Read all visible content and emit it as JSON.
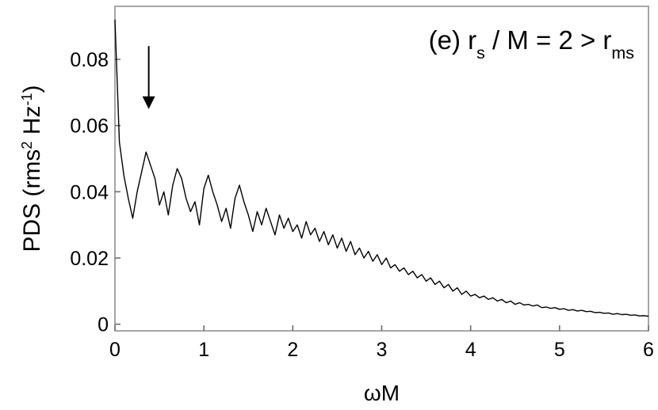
{
  "chart_data": {
    "type": "line",
    "annotation": [
      {
        "text": "(e) r"
      },
      {
        "text": "s",
        "sub": true
      },
      {
        "text": " / M = 2 > r"
      },
      {
        "text": "ms",
        "sub": true
      }
    ],
    "xlabel": [
      {
        "text": "ωM"
      }
    ],
    "ylabel": [
      {
        "text": "PDS (rms"
      },
      {
        "text": "2",
        "sup": true
      },
      {
        "text": " Hz"
      },
      {
        "text": "-1",
        "sup": true
      },
      {
        "text": ")"
      }
    ],
    "color": "#000000",
    "xlim": [
      0,
      6
    ],
    "ylim": [
      -0.002,
      0.096
    ],
    "xticks": [
      0,
      1,
      2,
      3,
      4,
      5,
      6
    ],
    "yticks": [
      0,
      0.02,
      0.04,
      0.06,
      0.08
    ],
    "arrow": {
      "x": 0.38,
      "y_from": 0.084,
      "y_to": 0.065
    },
    "x": [
      0,
      0.05,
      0.1,
      0.15,
      0.2,
      0.25,
      0.3,
      0.35,
      0.4,
      0.45,
      0.5,
      0.55,
      0.6,
      0.65,
      0.7,
      0.75,
      0.8,
      0.85,
      0.9,
      0.95,
      1,
      1.05,
      1.1,
      1.15,
      1.2,
      1.25,
      1.3,
      1.35,
      1.4,
      1.45,
      1.5,
      1.55,
      1.6,
      1.65,
      1.7,
      1.75,
      1.8,
      1.85,
      1.9,
      1.95,
      2,
      2.05,
      2.1,
      2.15,
      2.2,
      2.25,
      2.3,
      2.35,
      2.4,
      2.45,
      2.5,
      2.55,
      2.6,
      2.65,
      2.7,
      2.75,
      2.8,
      2.85,
      2.9,
      2.95,
      3,
      3.05,
      3.1,
      3.15,
      3.2,
      3.25,
      3.3,
      3.35,
      3.4,
      3.45,
      3.5,
      3.55,
      3.6,
      3.65,
      3.7,
      3.75,
      3.8,
      3.85,
      3.9,
      3.95,
      4,
      4.05,
      4.1,
      4.15,
      4.2,
      4.25,
      4.3,
      4.35,
      4.4,
      4.45,
      4.5,
      4.55,
      4.6,
      4.65,
      4.7,
      4.75,
      4.8,
      4.85,
      4.9,
      4.95,
      5,
      5.05,
      5.1,
      5.15,
      5.2,
      5.25,
      5.3,
      5.35,
      5.4,
      5.45,
      5.5,
      5.55,
      5.6,
      5.65,
      5.7,
      5.75,
      5.8,
      5.85,
      5.9,
      5.95,
      6
    ],
    "values": [
      0.092,
      0.055,
      0.045,
      0.038,
      0.032,
      0.04,
      0.046,
      0.052,
      0.048,
      0.044,
      0.036,
      0.04,
      0.033,
      0.042,
      0.047,
      0.044,
      0.038,
      0.034,
      0.037,
      0.03,
      0.041,
      0.045,
      0.04,
      0.036,
      0.031,
      0.035,
      0.029,
      0.038,
      0.042,
      0.037,
      0.033,
      0.028,
      0.034,
      0.03,
      0.035,
      0.031,
      0.027,
      0.033,
      0.029,
      0.032,
      0.028,
      0.03,
      0.026,
      0.031,
      0.027,
      0.029,
      0.025,
      0.028,
      0.024,
      0.027,
      0.023,
      0.026,
      0.022,
      0.025,
      0.021,
      0.023,
      0.02,
      0.022,
      0.019,
      0.021,
      0.018,
      0.02,
      0.017,
      0.018,
      0.016,
      0.017,
      0.015,
      0.016,
      0.014,
      0.015,
      0.013,
      0.014,
      0.012,
      0.013,
      0.011,
      0.012,
      0.01,
      0.011,
      0.009,
      0.01,
      0.0085,
      0.009,
      0.008,
      0.0085,
      0.0075,
      0.008,
      0.007,
      0.0075,
      0.0065,
      0.007,
      0.006,
      0.0065,
      0.0058,
      0.006,
      0.0055,
      0.0058,
      0.005,
      0.0052,
      0.0048,
      0.005,
      0.0045,
      0.0047,
      0.0042,
      0.0044,
      0.004,
      0.0042,
      0.0038,
      0.0039,
      0.0035,
      0.0036,
      0.0033,
      0.0034,
      0.003,
      0.0032,
      0.0029,
      0.003,
      0.0027,
      0.0028,
      0.0025,
      0.0026,
      0.0024
    ]
  }
}
